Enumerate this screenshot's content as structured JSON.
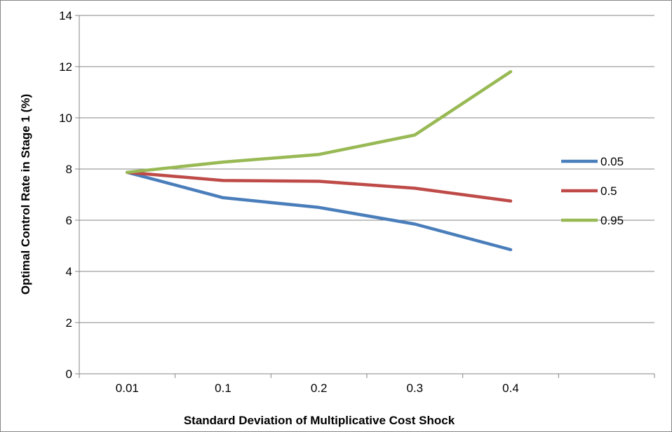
{
  "chart_data": {
    "type": "line",
    "categories": [
      "0.01",
      "0.1",
      "0.2",
      "0.3",
      "0.4"
    ],
    "series": [
      {
        "name": "0.05",
        "color": "#4a7ebb",
        "values": [
          7.87,
          6.88,
          6.5,
          5.85,
          4.85
        ]
      },
      {
        "name": "0.5",
        "color": "#be4b48",
        "values": [
          7.87,
          7.55,
          7.52,
          7.25,
          6.75
        ]
      },
      {
        "name": "0.95",
        "color": "#98b954",
        "values": [
          7.87,
          8.27,
          8.57,
          9.33,
          11.8
        ]
      }
    ],
    "xlabel": "Standard Deviation of Multiplicative Cost Shock",
    "ylabel": "Optimal Control Rate in Stage 1 (%)",
    "ylim": [
      0,
      14
    ],
    "yticks": [
      0,
      2,
      4,
      6,
      8,
      10,
      12,
      14
    ],
    "grid": "horizontal",
    "legend_position": "right"
  }
}
